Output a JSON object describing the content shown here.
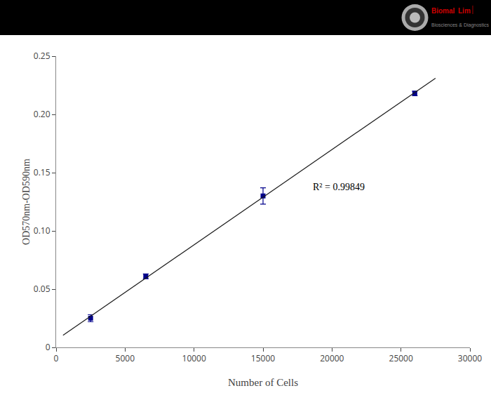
{
  "chart_data": {
    "type": "scatter",
    "xlabel": "Number of Cells",
    "ylabel": "OD570nm-OD590nm",
    "series": [
      {
        "type": "scatter",
        "marker": "square",
        "color": "#00008B",
        "x": [
          2500,
          6500,
          15000,
          26000
        ],
        "values": [
          0.025,
          0.061,
          0.13,
          0.218
        ],
        "errors": [
          0.003,
          0.002,
          0.007,
          0.002
        ]
      },
      {
        "type": "line",
        "line_style": "solid",
        "color": "#1a1a1a",
        "x": [
          500,
          27500
        ],
        "values": [
          0.010429,
          0.231089
        ]
      }
    ],
    "xlim": [
      0,
      30000
    ],
    "ylim": [
      0,
      0.25
    ],
    "xticks": [
      0,
      5000,
      10000,
      15000,
      20000,
      25000,
      30000
    ],
    "yticks": [
      0,
      0.05,
      {
        "value": 0.1,
        "label": "0.10"
      },
      0.15,
      {
        "value": 0.2,
        "label": "0.20"
      },
      0.25
    ],
    "annotations": [
      {
        "text": "R² = 0.99849",
        "x": 18500,
        "y": 0.132
      }
    ],
    "header": {
      "color": "#000000",
      "texts": [
        {
          "text": "BiomaI",
          "color": "#cc0000"
        },
        {
          "text": "Lim",
          "color": "#cc0000"
        },
        {
          "text": "│",
          "color": "#cc0000"
        },
        {
          "text": "Biosciences & Diagnostics",
          "color": "#888888"
        }
      ]
    },
    "grid": false,
    "legend": false
  }
}
